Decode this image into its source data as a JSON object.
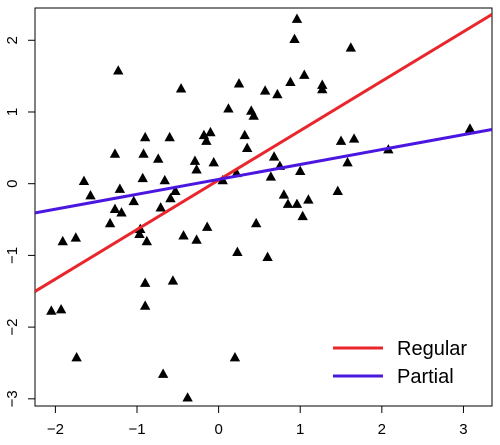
{
  "chart_data": {
    "type": "scatter",
    "title": "",
    "xlabel": "",
    "ylabel": "",
    "xlim": [
      -2.25,
      3.35
    ],
    "ylim": [
      -3.1,
      2.45
    ],
    "x_ticks": [
      -2,
      -1,
      0,
      1,
      2,
      3
    ],
    "y_ticks": [
      -3,
      -2,
      -1,
      0,
      1,
      2
    ],
    "x_tick_labels": [
      "−2",
      "−1",
      "0",
      "1",
      "2",
      "3"
    ],
    "y_tick_labels": [
      "−3",
      "−2",
      "−1",
      "0",
      "1",
      "2"
    ],
    "points": [
      [
        -2.05,
        -1.77
      ],
      [
        -1.93,
        -1.75
      ],
      [
        -1.91,
        -0.8
      ],
      [
        -1.75,
        -0.75
      ],
      [
        -1.74,
        -2.42
      ],
      [
        -1.65,
        0.04
      ],
      [
        -1.57,
        -0.16
      ],
      [
        -1.33,
        -0.55
      ],
      [
        -1.27,
        -0.35
      ],
      [
        -1.27,
        0.42
      ],
      [
        -1.23,
        1.58
      ],
      [
        -1.21,
        -0.07
      ],
      [
        -1.19,
        -0.4
      ],
      [
        -1.04,
        -0.24
      ],
      [
        -0.97,
        -0.7
      ],
      [
        -0.96,
        -0.63
      ],
      [
        -0.93,
        0.08
      ],
      [
        -0.92,
        0.42
      ],
      [
        -0.9,
        0.65
      ],
      [
        -0.9,
        -1.38
      ],
      [
        -0.9,
        -1.7
      ],
      [
        -0.88,
        -0.8
      ],
      [
        -0.74,
        0.35
      ],
      [
        -0.71,
        -0.33
      ],
      [
        -0.66,
        0.05
      ],
      [
        -0.68,
        -2.65
      ],
      [
        -0.6,
        0.65
      ],
      [
        -0.59,
        -0.2
      ],
      [
        -0.56,
        -1.35
      ],
      [
        -0.53,
        -0.1
      ],
      [
        -0.46,
        1.33
      ],
      [
        -0.43,
        -0.72
      ],
      [
        -0.38,
        -2.98
      ],
      [
        -0.29,
        0.32
      ],
      [
        -0.27,
        -0.78
      ],
      [
        -0.27,
        0.2
      ],
      [
        -0.18,
        0.68
      ],
      [
        -0.15,
        0.6
      ],
      [
        -0.1,
        0.72
      ],
      [
        -0.14,
        -0.6
      ],
      [
        -0.06,
        0.3
      ],
      [
        0.05,
        0.05
      ],
      [
        0.12,
        1.05
      ],
      [
        0.2,
        -2.42
      ],
      [
        0.22,
        0.15
      ],
      [
        0.23,
        -0.95
      ],
      [
        0.25,
        1.4
      ],
      [
        0.32,
        0.68
      ],
      [
        0.35,
        0.5
      ],
      [
        0.4,
        1.02
      ],
      [
        0.43,
        0.95
      ],
      [
        0.46,
        -0.55
      ],
      [
        0.57,
        1.3
      ],
      [
        0.6,
        -1.02
      ],
      [
        0.64,
        0.1
      ],
      [
        0.68,
        0.38
      ],
      [
        0.72,
        1.25
      ],
      [
        0.75,
        0.25
      ],
      [
        0.8,
        -0.15
      ],
      [
        0.85,
        -0.28
      ],
      [
        0.88,
        1.42
      ],
      [
        0.93,
        2.02
      ],
      [
        0.96,
        2.3
      ],
      [
        0.96,
        -0.28
      ],
      [
        1.0,
        0.18
      ],
      [
        1.03,
        -0.45
      ],
      [
        1.05,
        1.52
      ],
      [
        1.1,
        -0.22
      ],
      [
        1.27,
        1.38
      ],
      [
        1.27,
        1.32
      ],
      [
        1.46,
        -0.1
      ],
      [
        1.5,
        0.6
      ],
      [
        1.58,
        0.3
      ],
      [
        1.62,
        1.9
      ],
      [
        1.66,
        0.63
      ],
      [
        2.08,
        0.48
      ],
      [
        3.08,
        0.77
      ]
    ],
    "lines": [
      {
        "name": "Regular",
        "color": "#e8262c",
        "slope": 0.69,
        "intercept": 0.05
      },
      {
        "name": "Partial",
        "color": "#4b16e0",
        "slope": 0.208,
        "intercept": 0.06
      }
    ],
    "legend": {
      "position": "bottom-right",
      "entries": [
        "Regular",
        "Partial"
      ]
    },
    "grid": false
  }
}
